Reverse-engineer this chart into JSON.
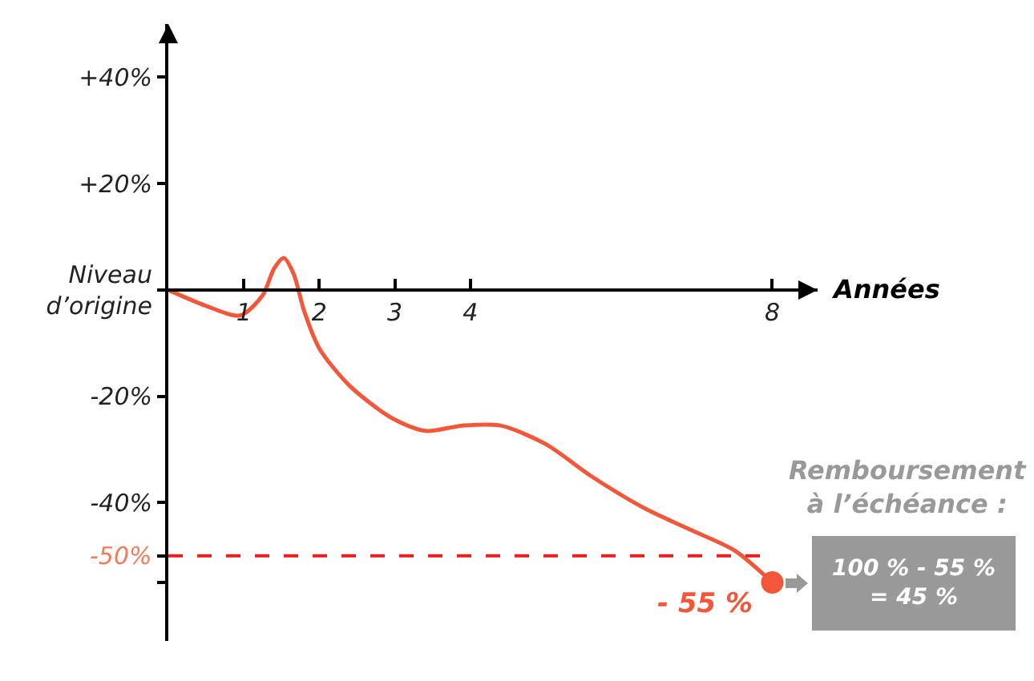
{
  "chart_data": {
    "type": "line",
    "xlabel": "Années",
    "xlim": [
      0,
      8.6
    ],
    "xticks": [
      1,
      2,
      3,
      4,
      8
    ],
    "ylim": [
      -66,
      50
    ],
    "yticks": [
      {
        "value": 40,
        "label": "+40%"
      },
      {
        "value": 20,
        "label": "+20%"
      },
      {
        "value": 0,
        "label": "Niveau\nd’origine"
      },
      {
        "value": -20,
        "label": "-20%"
      },
      {
        "value": -40,
        "label": "-40%"
      },
      {
        "value": -50,
        "label": null
      },
      {
        "value": -55,
        "label": null
      }
    ],
    "series": [
      {
        "color": "#f2573a",
        "x": [
          0,
          0.5,
          0.95,
          1.25,
          1.4,
          1.53,
          1.66,
          1.8,
          2.0,
          2.4,
          2.95,
          3.4,
          3.9,
          4.4,
          5.0,
          5.6,
          6.3,
          6.9,
          7.5,
          8
        ],
        "values": [
          0,
          -3,
          -4.8,
          -1,
          4,
          6,
          3,
          -4,
          -11,
          -18,
          -24,
          -26.5,
          -25.5,
          -25.5,
          -29,
          -35,
          -41,
          -45,
          -49,
          -55
        ]
      },
      {
        "type": "scatter",
        "color": "#f2573a",
        "x": [
          8
        ],
        "values": [
          -55
        ]
      }
    ],
    "ref_lines": [
      {
        "axis": "y",
        "value": -50,
        "label": "-50%",
        "color": "#ee1c1c",
        "line_style": "dashed"
      }
    ],
    "annotations": [
      {
        "text": "- 55 %",
        "x": 8,
        "y": -55
      },
      "Remboursement\nà l’échéance :",
      "100 % - 55 %\n= 45 %"
    ],
    "grid": false
  }
}
